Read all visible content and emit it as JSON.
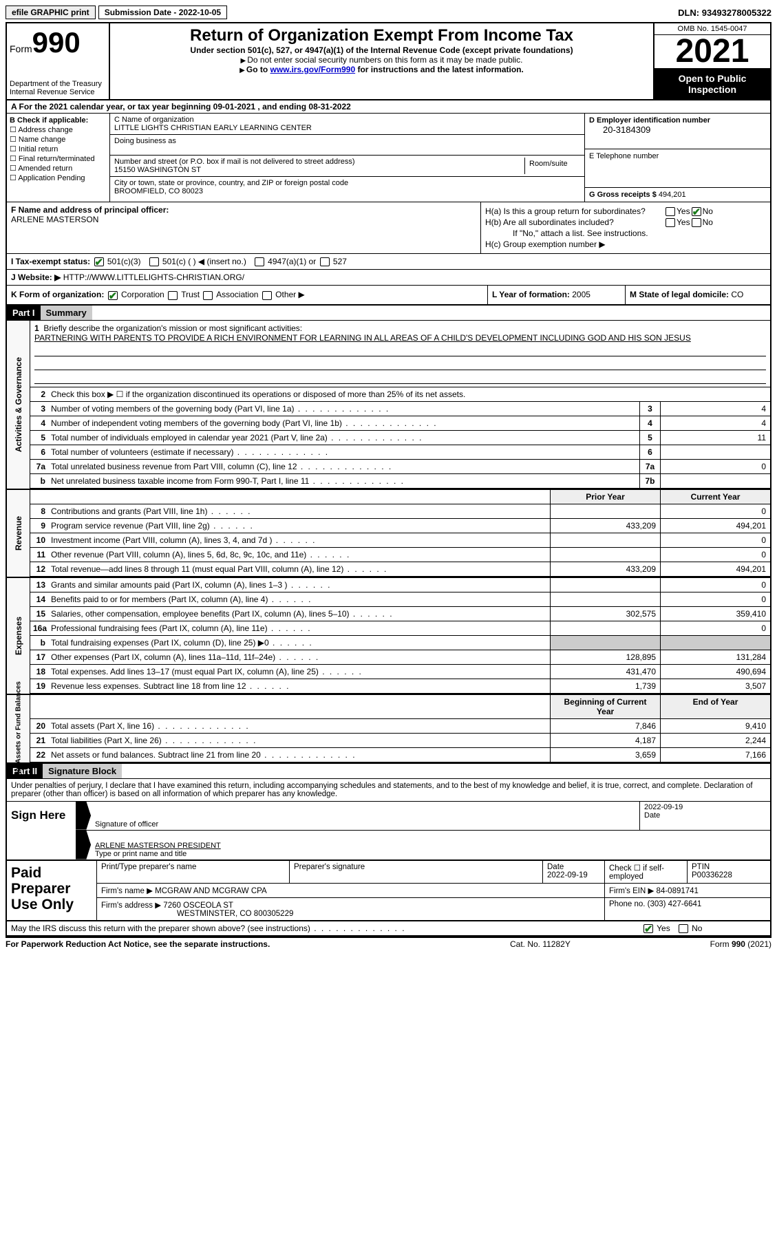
{
  "top": {
    "efile": "efile GRAPHIC print",
    "subdate_label": "Submission Date - ",
    "subdate": "2022-10-05",
    "dln_label": "DLN: ",
    "dln": "93493278005322"
  },
  "header": {
    "form_label": "Form",
    "form_num": "990",
    "dept": "Department of the Treasury",
    "irs": "Internal Revenue Service",
    "title": "Return of Organization Exempt From Income Tax",
    "subtitle": "Under section 501(c), 527, or 4947(a)(1) of the Internal Revenue Code (except private foundations)",
    "note1": "Do not enter social security numbers on this form as it may be made public.",
    "note2_pre": "Go to ",
    "note2_link": "www.irs.gov/Form990",
    "note2_post": " for instructions and the latest information.",
    "omb": "OMB No. 1545-0047",
    "year": "2021",
    "open": "Open to Public Inspection"
  },
  "rowA": {
    "text_pre": "A For the 2021 calendar year, or tax year beginning ",
    "begin": "09-01-2021",
    "mid": " , and ending ",
    "end": "08-31-2022"
  },
  "colB": {
    "label": "B Check if applicable:",
    "items": [
      "Address change",
      "Name change",
      "Initial return",
      "Final return/terminated",
      "Amended return",
      "Application Pending"
    ]
  },
  "colC": {
    "name_label": "C Name of organization",
    "name": "LITTLE LIGHTS CHRISTIAN EARLY LEARNING CENTER",
    "dba_label": "Doing business as",
    "street_label": "Number and street (or P.O. box if mail is not delivered to street address)",
    "street": "15150 WASHINGTON ST",
    "room_label": "Room/suite",
    "city_label": "City or town, state or province, country, and ZIP or foreign postal code",
    "city": "BROOMFIELD, CO  80023"
  },
  "colD": {
    "ein_label": "D Employer identification number",
    "ein": "20-3184309",
    "phone_label": "E Telephone number",
    "phone": "",
    "gross_label": "G Gross receipts $ ",
    "gross": "494,201"
  },
  "rowF": {
    "label": "F Name and address of principal officer:",
    "name": "ARLENE MASTERSON"
  },
  "rowH": {
    "ha_label": "H(a)  Is this a group return for subordinates?",
    "hb_label": "H(b)  Are all subordinates included?",
    "hb_note": "If \"No,\" attach a list. See instructions.",
    "hc_label": "H(c)  Group exemption number ▶",
    "yes": "Yes",
    "no": "No"
  },
  "rowI": {
    "label": "I    Tax-exempt status:",
    "opt1": "501(c)(3)",
    "opt2": "501(c) (  ) ◀ (insert no.)",
    "opt3": "4947(a)(1) or",
    "opt4": "527"
  },
  "rowJ": {
    "label": "J   Website: ▶",
    "url": "HTTP://WWW.LITTLELIGHTS-CHRISTIAN.ORG/"
  },
  "rowK": {
    "label": "K Form of organization:",
    "corp": "Corporation",
    "trust": "Trust",
    "assoc": "Association",
    "other": "Other ▶",
    "year_label": "L Year of formation: ",
    "year": "2005",
    "state_label": "M State of legal domicile: ",
    "state": "CO"
  },
  "part1": {
    "hdr": "Part I",
    "title": "Summary",
    "mission_label": "Briefly describe the organization's mission or most significant activities:",
    "mission": "PARTNERING WITH PARENTS TO PROVIDE A RICH ENVIRONMENT FOR LEARNING IN ALL AREAS OF A CHILD'S DEVELOPMENT INCLUDING GOD AND HIS SON JESUS",
    "line2": "Check this box ▶ ☐ if the organization discontinued its operations or disposed of more than 25% of its net assets.",
    "vtab1": "Activities & Governance",
    "vtab2": "Revenue",
    "vtab3": "Expenses",
    "vtab4": "Net Assets or Fund Balances",
    "prior_hdr": "Prior Year",
    "current_hdr": "Current Year",
    "begin_hdr": "Beginning of Current Year",
    "end_hdr": "End of Year",
    "lines_gov": [
      {
        "n": "3",
        "t": "Number of voting members of the governing body (Part VI, line 1a)",
        "box": "3",
        "v": "4"
      },
      {
        "n": "4",
        "t": "Number of independent voting members of the governing body (Part VI, line 1b)",
        "box": "4",
        "v": "4"
      },
      {
        "n": "5",
        "t": "Total number of individuals employed in calendar year 2021 (Part V, line 2a)",
        "box": "5",
        "v": "11"
      },
      {
        "n": "6",
        "t": "Total number of volunteers (estimate if necessary)",
        "box": "6",
        "v": ""
      },
      {
        "n": "7a",
        "t": "Total unrelated business revenue from Part VIII, column (C), line 12",
        "box": "7a",
        "v": "0"
      },
      {
        "n": "b",
        "t": "Net unrelated business taxable income from Form 990-T, Part I, line 11",
        "box": "7b",
        "v": ""
      }
    ],
    "lines_rev": [
      {
        "n": "8",
        "t": "Contributions and grants (Part VIII, line 1h)",
        "p": "",
        "c": "0"
      },
      {
        "n": "9",
        "t": "Program service revenue (Part VIII, line 2g)",
        "p": "433,209",
        "c": "494,201"
      },
      {
        "n": "10",
        "t": "Investment income (Part VIII, column (A), lines 3, 4, and 7d )",
        "p": "",
        "c": "0"
      },
      {
        "n": "11",
        "t": "Other revenue (Part VIII, column (A), lines 5, 6d, 8c, 9c, 10c, and 11e)",
        "p": "",
        "c": "0"
      },
      {
        "n": "12",
        "t": "Total revenue—add lines 8 through 11 (must equal Part VIII, column (A), line 12)",
        "p": "433,209",
        "c": "494,201"
      }
    ],
    "lines_exp": [
      {
        "n": "13",
        "t": "Grants and similar amounts paid (Part IX, column (A), lines 1–3 )",
        "p": "",
        "c": "0"
      },
      {
        "n": "14",
        "t": "Benefits paid to or for members (Part IX, column (A), line 4)",
        "p": "",
        "c": "0"
      },
      {
        "n": "15",
        "t": "Salaries, other compensation, employee benefits (Part IX, column (A), lines 5–10)",
        "p": "302,575",
        "c": "359,410"
      },
      {
        "n": "16a",
        "t": "Professional fundraising fees (Part IX, column (A), line 11e)",
        "p": "",
        "c": "0"
      },
      {
        "n": "b",
        "t": "Total fundraising expenses (Part IX, column (D), line 25) ▶0",
        "p": "shade",
        "c": "shade"
      },
      {
        "n": "17",
        "t": "Other expenses (Part IX, column (A), lines 11a–11d, 11f–24e)",
        "p": "128,895",
        "c": "131,284"
      },
      {
        "n": "18",
        "t": "Total expenses. Add lines 13–17 (must equal Part IX, column (A), line 25)",
        "p": "431,470",
        "c": "490,694"
      },
      {
        "n": "19",
        "t": "Revenue less expenses. Subtract line 18 from line 12",
        "p": "1,739",
        "c": "3,507"
      }
    ],
    "lines_net": [
      {
        "n": "20",
        "t": "Total assets (Part X, line 16)",
        "p": "7,846",
        "c": "9,410"
      },
      {
        "n": "21",
        "t": "Total liabilities (Part X, line 26)",
        "p": "4,187",
        "c": "2,244"
      },
      {
        "n": "22",
        "t": "Net assets or fund balances. Subtract line 21 from line 20",
        "p": "3,659",
        "c": "7,166"
      }
    ]
  },
  "part2": {
    "hdr": "Part II",
    "title": "Signature Block",
    "declare": "Under penalties of perjury, I declare that I have examined this return, including accompanying schedules and statements, and to the best of my knowledge and belief, it is true, correct, and complete. Declaration of preparer (other than officer) is based on all information of which preparer has any knowledge."
  },
  "sign": {
    "left": "Sign Here",
    "sig_label": "Signature of officer",
    "date": "2022-09-19",
    "date_label": "Date",
    "name": "ARLENE MASTERSON PRESIDENT",
    "name_label": "Type or print name and title"
  },
  "paid": {
    "left": "Paid Preparer Use Only",
    "name_label": "Print/Type preparer's name",
    "sig_label": "Preparer's signature",
    "date_label": "Date",
    "date": "2022-09-19",
    "check_label": "Check ☐ if self-employed",
    "ptin_label": "PTIN",
    "ptin": "P00336228",
    "firm_label": "Firm's name    ▶",
    "firm": "MCGRAW AND MCGRAW CPA",
    "ein_label": "Firm's EIN ▶",
    "ein": "84-0891741",
    "addr_label": "Firm's address ▶",
    "addr1": "7260 OSCEOLA ST",
    "addr2": "WESTMINSTER, CO  800305229",
    "phone_label": "Phone no. ",
    "phone": "(303) 427-6641"
  },
  "discuss": {
    "text": "May the IRS discuss this return with the preparer shown above? (see instructions)",
    "yes": "Yes",
    "no": "No"
  },
  "footer": {
    "left": "For Paperwork Reduction Act Notice, see the separate instructions.",
    "mid": "Cat. No. 11282Y",
    "right_pre": "Form ",
    "right_num": "990",
    "right_post": " (2021)"
  }
}
